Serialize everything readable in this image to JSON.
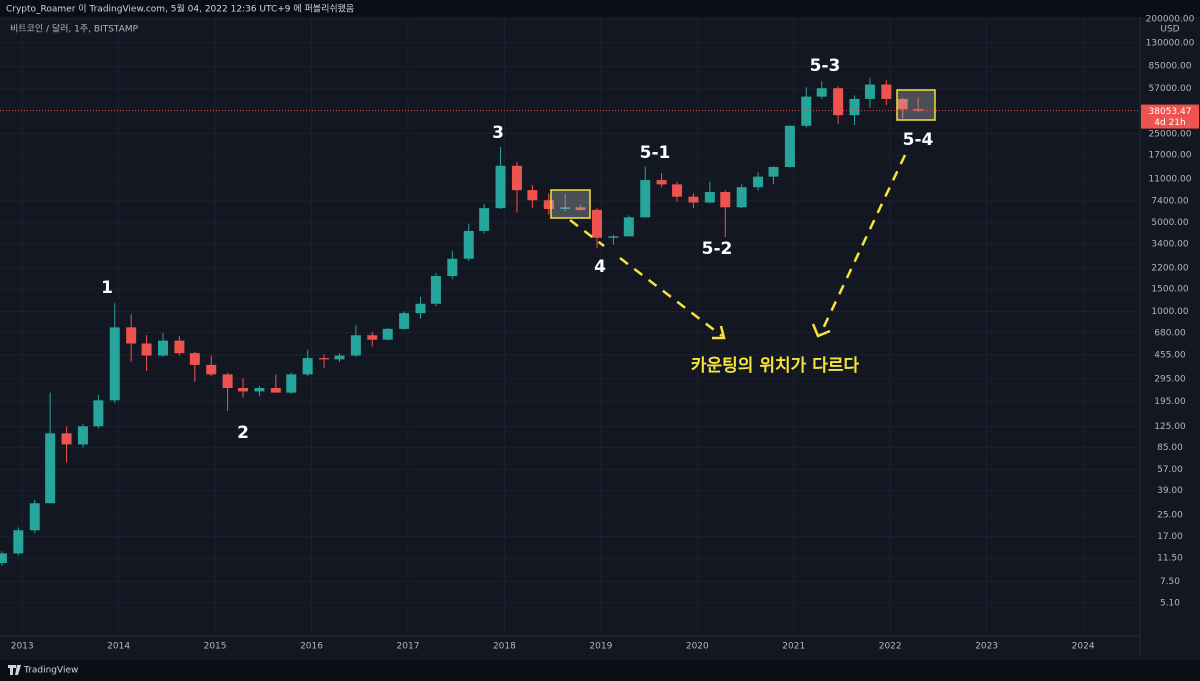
{
  "header": {
    "publisher": "Crypto_Roamer 이 TradingView.com, 5월 04, 2022 12:36 UTC+9 에 퍼블리쉬됐음"
  },
  "footer": {
    "brand": "TradingView"
  },
  "chart_data": {
    "type": "candlestick",
    "subtitle": "비트코인 / 달러, 1주, BITSTAMP",
    "y_unit": "USD",
    "log_scale": true,
    "grid": true,
    "up_color": "#26a69a",
    "down_color": "#ef5350",
    "x": [
      2012.79,
      2012.96,
      2013.13,
      2013.29,
      2013.46,
      2013.63,
      2013.79,
      2013.96,
      2014.13,
      2014.29,
      2014.46,
      2014.63,
      2014.79,
      2014.96,
      2015.13,
      2015.29,
      2015.46,
      2015.63,
      2015.79,
      2015.96,
      2016.13,
      2016.29,
      2016.46,
      2016.63,
      2016.79,
      2016.96,
      2017.13,
      2017.29,
      2017.46,
      2017.63,
      2017.79,
      2017.96,
      2018.13,
      2018.29,
      2018.46,
      2018.63,
      2018.79,
      2018.96,
      2019.13,
      2019.29,
      2019.46,
      2019.63,
      2019.79,
      2019.96,
      2020.13,
      2020.29,
      2020.46,
      2020.63,
      2020.79,
      2020.96,
      2021.13,
      2021.29,
      2021.46,
      2021.63,
      2021.79,
      2021.96,
      2022.13,
      2022.29
    ],
    "open": [
      10.5,
      12.5,
      19,
      31,
      110,
      90,
      125,
      200,
      750,
      560,
      450,
      590,
      470,
      380,
      320,
      250,
      235,
      250,
      230,
      320,
      430,
      420,
      450,
      650,
      600,
      730,
      970,
      1150,
      1900,
      2600,
      4300,
      6500,
      14000,
      9000,
      7500,
      6400,
      6600,
      6300,
      3800,
      3900,
      5500,
      10800,
      10000,
      8000,
      7200,
      8700,
      6600,
      9500,
      11500,
      13700,
      28900,
      49000,
      57000,
      35000,
      47000,
      61000,
      47000,
      39000
    ],
    "high": [
      13,
      20,
      33,
      230,
      125,
      130,
      220,
      1160,
      950,
      650,
      680,
      640,
      480,
      450,
      330,
      300,
      260,
      320,
      330,
      500,
      460,
      470,
      780,
      690,
      740,
      1000,
      1300,
      2000,
      3000,
      4900,
      7000,
      19700,
      15000,
      9900,
      8500,
      8400,
      6900,
      6500,
      4000,
      5700,
      13800,
      12300,
      10500,
      8500,
      10500,
      9000,
      10000,
      12400,
      13900,
      29000,
      58000,
      64900,
      59000,
      50000,
      69000,
      66000,
      48000,
      48000
    ],
    "low": [
      10,
      12,
      18,
      50,
      65,
      85,
      120,
      190,
      400,
      340,
      440,
      450,
      280,
      310,
      165,
      210,
      215,
      240,
      225,
      310,
      360,
      400,
      440,
      530,
      590,
      720,
      880,
      1100,
      1800,
      2500,
      4100,
      6400,
      6000,
      6500,
      5800,
      6100,
      6200,
      3150,
      3350,
      3900,
      5500,
      9500,
      7300,
      6500,
      7100,
      3850,
      6500,
      9000,
      10000,
      13500,
      28000,
      47000,
      30000,
      29300,
      40000,
      42000,
      33000,
      37000
    ],
    "close": [
      12.5,
      19,
      31,
      110,
      90,
      125,
      200,
      750,
      560,
      450,
      590,
      470,
      380,
      320,
      250,
      235,
      250,
      230,
      320,
      430,
      420,
      450,
      650,
      600,
      730,
      970,
      1150,
      1900,
      2600,
      4300,
      6500,
      14000,
      9000,
      7500,
      6400,
      6600,
      6300,
      3800,
      3900,
      5500,
      10800,
      10000,
      8000,
      7200,
      8700,
      6600,
      9500,
      11500,
      13700,
      28900,
      49000,
      57000,
      35000,
      47000,
      61000,
      47000,
      39000,
      38053.47
    ],
    "xlim": [
      2012.77,
      2024.59
    ],
    "xticks": [
      2013,
      2014,
      2015,
      2016,
      2017,
      2018,
      2019,
      2020,
      2021,
      2022,
      2023,
      2024
    ],
    "ylim": [
      2.8,
      282000
    ],
    "yticks": [
      {
        "value": 200000,
        "label": "200000.00"
      },
      {
        "value": 130000,
        "label": "130000.00"
      },
      {
        "value": 85000,
        "label": "85000.00"
      },
      {
        "value": 57000,
        "label": "57000.00"
      },
      {
        "value": 25000,
        "label": "25000.00"
      },
      {
        "value": 17000,
        "label": "17000.00"
      },
      {
        "value": 11000,
        "label": "11000.00"
      },
      {
        "value": 7400,
        "label": "7400.00"
      },
      {
        "value": 5000,
        "label": "5000.00"
      },
      {
        "value": 3400,
        "label": "3400.00"
      },
      {
        "value": 2200,
        "label": "2200.00"
      },
      {
        "value": 1500,
        "label": "1500.00"
      },
      {
        "value": 1000,
        "label": "1000.00"
      },
      {
        "value": 680,
        "label": "680.00"
      },
      {
        "value": 455,
        "label": "455.00"
      },
      {
        "value": 295,
        "label": "295.00"
      },
      {
        "value": 195,
        "label": "195.00"
      },
      {
        "value": 125,
        "label": "125.00"
      },
      {
        "value": 85,
        "label": "85.00"
      },
      {
        "value": 57,
        "label": "57.00"
      },
      {
        "value": 39,
        "label": "39.00"
      },
      {
        "value": 25,
        "label": "25.00"
      },
      {
        "value": 17,
        "label": "17.00"
      },
      {
        "value": 11.5,
        "label": "11.50"
      },
      {
        "value": 7.5,
        "label": "7.50"
      },
      {
        "value": 5.1,
        "label": "5.10"
      }
    ],
    "last_price": 38053.47,
    "countdown": "4d 21h",
    "annotations": [
      "1",
      "2",
      "3",
      "4",
      "5-1",
      "5-2",
      "5-3",
      "5-4",
      "카운팅의 위치가 다르다"
    ]
  }
}
